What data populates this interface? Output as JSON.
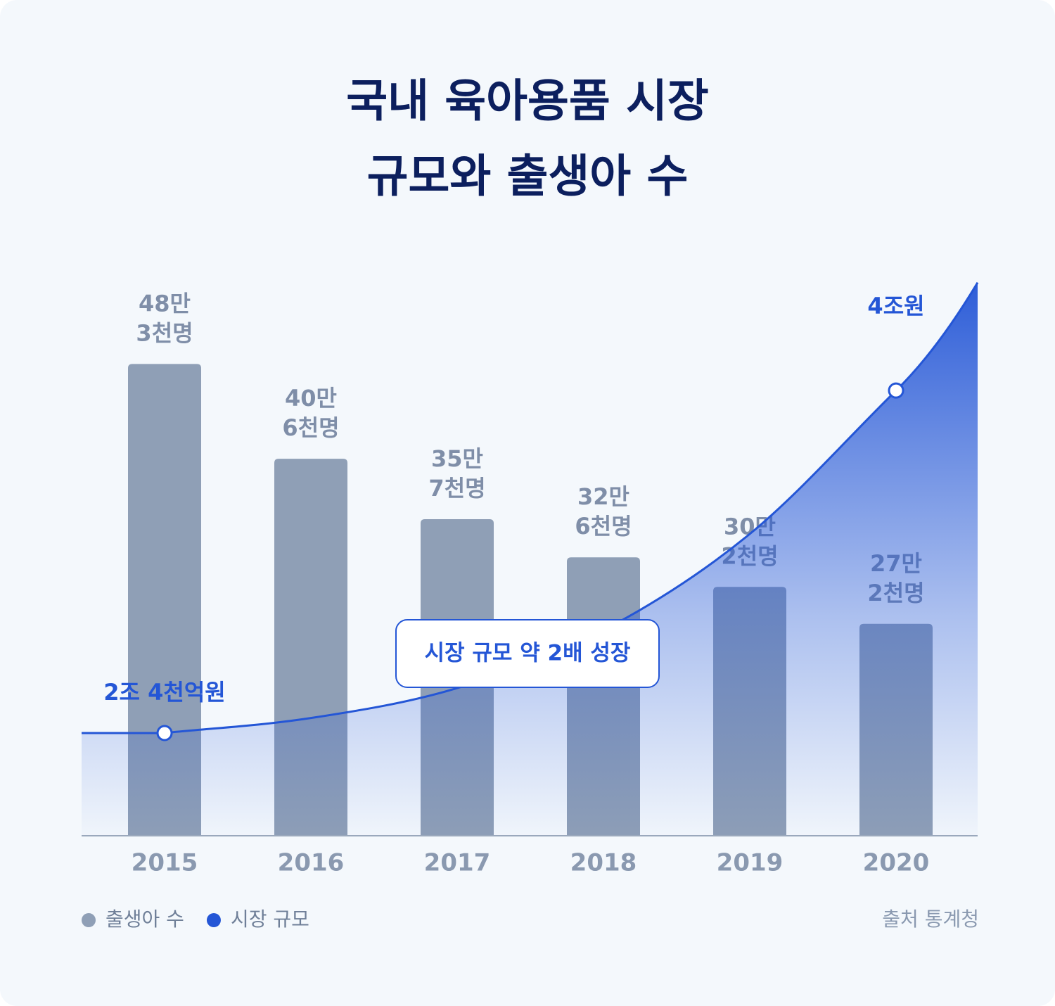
{
  "chart_data": {
    "type": "bar",
    "title": [
      "국내 육아용품 시장",
      "규모와 출생아 수"
    ],
    "categories": [
      "2015",
      "2016",
      "2017",
      "2018",
      "2019",
      "2020"
    ],
    "series": [
      {
        "name": "출생아 수",
        "type": "bar",
        "color": "#8f9fb6",
        "values": [
          483000,
          406000,
          357000,
          326000,
          302000,
          272000
        ],
        "value_labels": [
          [
            "48만",
            "3천명"
          ],
          [
            "40만",
            "6천명"
          ],
          [
            "35만",
            "7천명"
          ],
          [
            "32만",
            "6천명"
          ],
          [
            "30만",
            "2천명"
          ],
          [
            "27만",
            "2천명"
          ]
        ]
      },
      {
        "name": "시장 규모",
        "type": "line",
        "axis": "y2",
        "color": "#2456d6",
        "values": [
          2400000000000,
          2470000000000,
          2610000000000,
          2880000000000,
          3330000000000,
          4000000000000
        ],
        "value_labels": [
          "2조 4천억원",
          null,
          null,
          null,
          null,
          "4조원"
        ]
      }
    ],
    "ylim": [
      100000,
      550000
    ],
    "y2lim": [
      1920000000000,
      4510000000000
    ],
    "annotation": "시장 규모 약 2배 성장",
    "source": "출처 통계청"
  }
}
